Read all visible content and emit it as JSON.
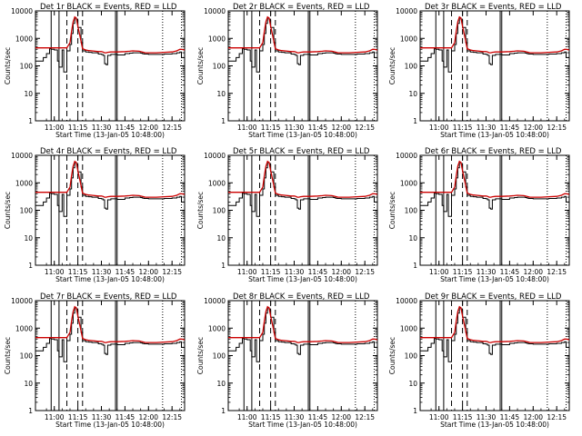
{
  "chart_data": {
    "type": "line",
    "y_scale": "log",
    "ylim": [
      1,
      10000
    ],
    "xlim": [
      "10:48",
      "12:23"
    ],
    "ylabel": "Counts/sec",
    "xlabel": "Start Time (13-Jan-05 10:48:00)",
    "x_tick_labels": [
      "11:00",
      "11:15",
      "11:30",
      "11:45",
      "12:00",
      "12:15"
    ],
    "y_tick_labels": [
      "1",
      "10",
      "100",
      "1000",
      "10000"
    ],
    "colors": {
      "events": "#000000",
      "lld": "#cc0000"
    },
    "x_times": [
      "10:48",
      "10:53",
      "10:55",
      "10:57",
      "10:58",
      "11:00",
      "11:02",
      "11:03",
      "11:05",
      "11:06",
      "11:08",
      "11:10",
      "11:11",
      "11:12",
      "11:13",
      "11:14",
      "11:15",
      "11:17",
      "11:18",
      "11:20",
      "11:22",
      "11:24",
      "11:28",
      "11:30",
      "11:31",
      "11:32",
      "11:33",
      "11:34",
      "11:36",
      "11:40",
      "11:45",
      "11:48",
      "11:50",
      "11:54",
      "11:55",
      "11:56",
      "11:57",
      "11:58",
      "12:00",
      "12:05",
      "12:10",
      "12:15",
      "12:18",
      "12:20",
      "12:21",
      "12:23"
    ],
    "vlines_solid": [
      "10:58",
      "11:03",
      "11:39",
      "11:40"
    ],
    "vlines_dashed": [
      "11:08",
      "11:15",
      "11:18"
    ],
    "vlines_dotted": [
      "12:09",
      "12:21"
    ],
    "panels": [
      {
        "title": "Det 1r BLACK = Events, RED = LLD"
      },
      {
        "title": "Det 2r BLACK = Events, RED = LLD"
      },
      {
        "title": "Det 3r BLACK = Events, RED = LLD"
      },
      {
        "title": "Det 4r BLACK = Events, RED = LLD"
      },
      {
        "title": "Det 5r BLACK = Events, RED = LLD"
      },
      {
        "title": "Det 6r BLACK = Events, RED = LLD"
      },
      {
        "title": "Det 7r BLACK = Events, RED = LLD"
      },
      {
        "title": "Det 8r BLACK = Events, RED = LLD"
      },
      {
        "title": "Det 9r BLACK = Events, RED = LLD"
      }
    ],
    "series": [
      {
        "name": "Events",
        "values": [
          150,
          200,
          280,
          420,
          400,
          380,
          150,
          90,
          380,
          60,
          350,
          600,
          1500,
          3500,
          5500,
          5000,
          2500,
          700,
          350,
          320,
          310,
          300,
          270,
          260,
          240,
          120,
          110,
          240,
          260,
          250,
          280,
          290,
          300,
          300,
          290,
          280,
          270,
          270,
          260,
          260,
          270,
          280,
          300,
          320,
          200,
          150
        ]
      },
      {
        "name": "LLD",
        "values": [
          450,
          450,
          450,
          450,
          450,
          450,
          450,
          450,
          450,
          450,
          450,
          700,
          1800,
          4000,
          6000,
          5500,
          2800,
          800,
          420,
          380,
          360,
          350,
          330,
          330,
          320,
          300,
          300,
          310,
          320,
          320,
          330,
          340,
          350,
          340,
          330,
          320,
          310,
          300,
          300,
          300,
          310,
          320,
          350,
          400,
          400,
          380
        ]
      }
    ]
  }
}
